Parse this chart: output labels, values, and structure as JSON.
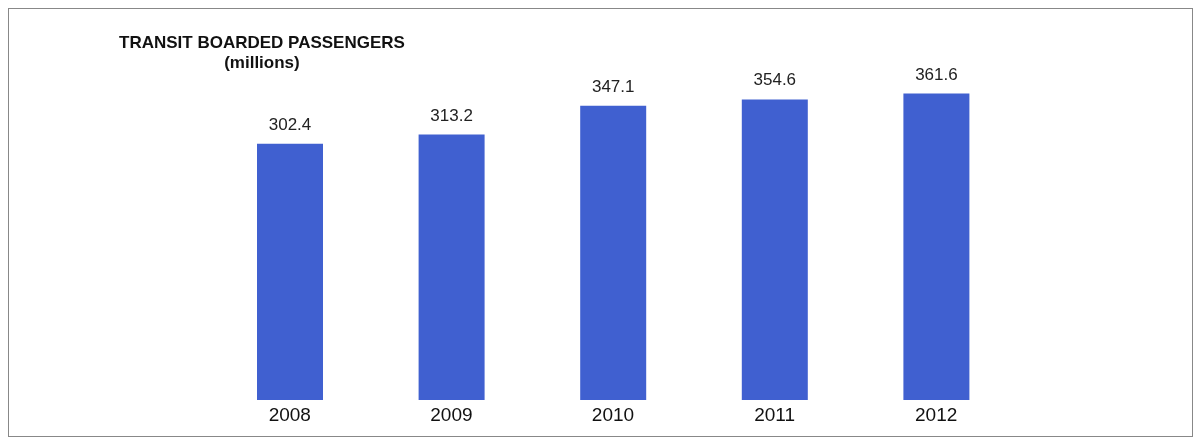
{
  "chart_data": {
    "type": "bar",
    "title": "TRANSIT BOARDED PASSENGERS",
    "subtitle": "(millions)",
    "categories": [
      "2008",
      "2009",
      "2010",
      "2011",
      "2012"
    ],
    "values": [
      302.4,
      313.2,
      347.1,
      354.6,
      361.6
    ],
    "color": "#4060d0",
    "data_labels": true
  }
}
